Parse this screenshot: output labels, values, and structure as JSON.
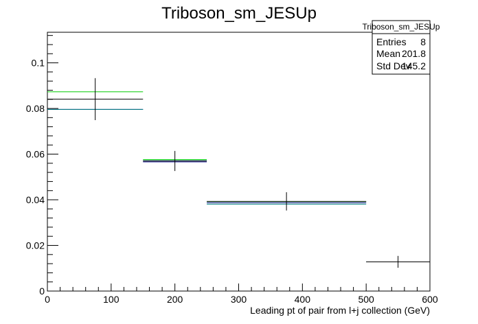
{
  "chart_data": {
    "type": "histogram",
    "title": "Triboson_sm_JESUp",
    "xlabel": "Leading pt of pair from l+j collection (GeV)",
    "ylabel": "",
    "xlim": [
      0,
      600
    ],
    "ylim": [
      0,
      0.1134
    ],
    "x_ticks": [
      0,
      100,
      200,
      300,
      400,
      500,
      600
    ],
    "y_ticks": [
      0,
      0.02,
      0.04,
      0.06,
      0.08,
      0.1
    ],
    "x_tick_labels": [
      "0",
      "100",
      "200",
      "300",
      "400",
      "500",
      "600"
    ],
    "y_tick_labels": [
      "0",
      "0.02",
      "0.04",
      "0.06",
      "0.08",
      "0.1"
    ],
    "bins": [
      {
        "low": 0,
        "high": 150,
        "center": 75
      },
      {
        "low": 150,
        "high": 250,
        "center": 200
      },
      {
        "low": 250,
        "high": 500,
        "center": 375
      },
      {
        "low": 500,
        "high": 600,
        "center": 550
      }
    ],
    "series": [
      {
        "color": "#00cc00",
        "values": [
          0.0873,
          0.0576,
          0.0392,
          0.0128
        ],
        "errors": [
          0,
          0,
          0,
          0
        ]
      },
      {
        "color": "#000080",
        "values": [
          0.0796,
          0.0566,
          0.0387,
          0.0128
        ],
        "errors": [
          0,
          0,
          0,
          0
        ]
      },
      {
        "color": "#008080",
        "values": [
          0.0796,
          0.0571,
          0.0381,
          0.0128
        ],
        "errors": [
          0,
          0,
          0,
          0
        ]
      },
      {
        "color": "#000000",
        "values": [
          0.0841,
          0.057,
          0.0393,
          0.0128
        ],
        "errors": [
          0.0092,
          0.0044,
          0.004,
          0.0026
        ]
      }
    ],
    "legend": "none",
    "grid": false,
    "stats_box": {
      "title": "Triboson_sm_JESUp",
      "rows": [
        {
          "label": "Entries",
          "value": "8"
        },
        {
          "label": "Mean",
          "value": "201.8"
        },
        {
          "label": "Std Dev",
          "value": "145.2"
        }
      ],
      "placement": "top-right"
    }
  }
}
